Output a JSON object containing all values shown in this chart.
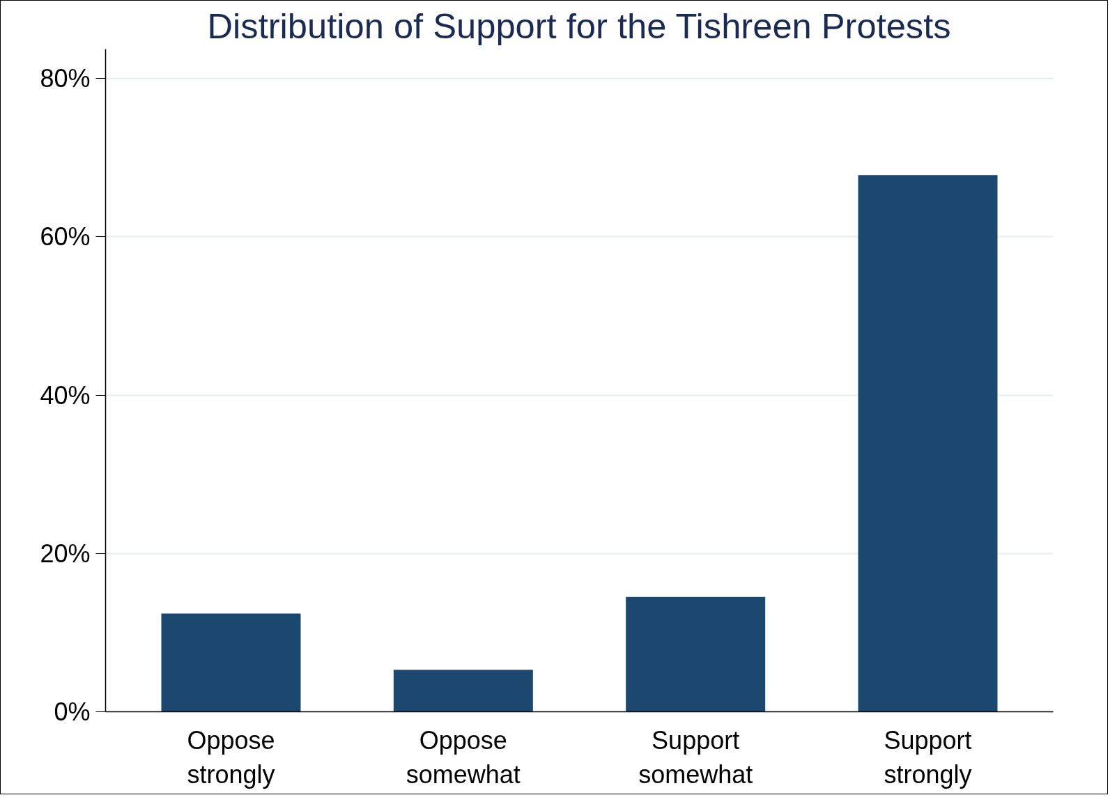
{
  "chart_data": {
    "type": "bar",
    "title": "Distribution of Support for the Tishreen Protests",
    "categories": [
      "Oppose\nstrongly",
      "Oppose\nsomewhat",
      "Support\nsomewhat",
      "Support\nstrongly"
    ],
    "values": [
      12.4,
      5.3,
      14.5,
      67.8
    ],
    "color": "#1c4870",
    "ylim": [
      0,
      83.7
    ],
    "yticks": [
      {
        "value": 0,
        "label": "0%"
      },
      {
        "value": 20,
        "label": "20%"
      },
      {
        "value": 40,
        "label": "40%"
      },
      {
        "value": 60,
        "label": "60%"
      },
      {
        "value": 80,
        "label": "80%"
      }
    ],
    "grid": "y"
  }
}
